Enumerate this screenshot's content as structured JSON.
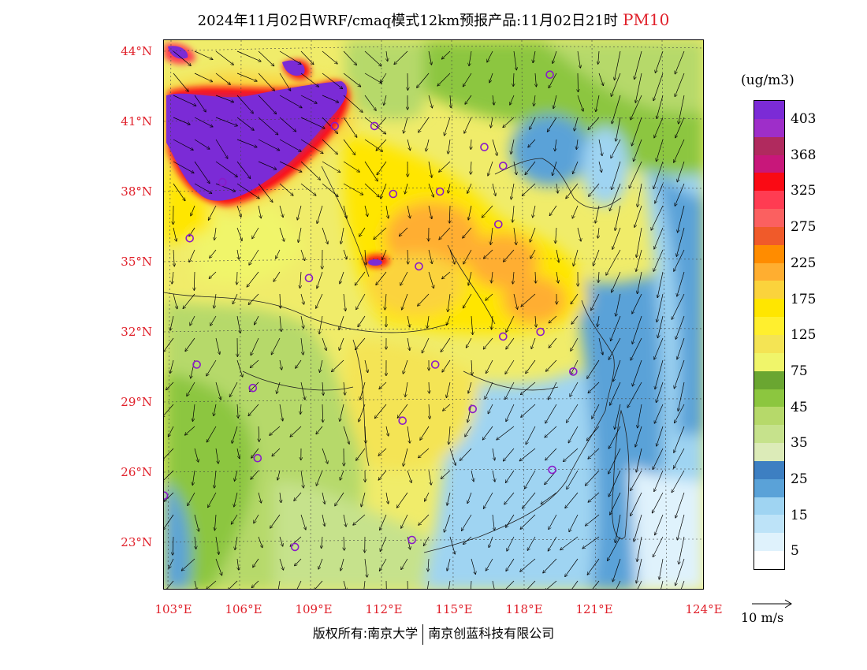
{
  "title": {
    "main": "2024年11月02日WRF/cmaq模式12km预报产品:11月02日21时",
    "pollutant": "PM10"
  },
  "axes": {
    "lat_labels": [
      "44°N",
      "41°N",
      "38°N",
      "35°N",
      "32°N",
      "29°N",
      "26°N",
      "23°N"
    ],
    "lon_labels": [
      "103°E",
      "106°E",
      "109°E",
      "112°E",
      "115°E",
      "118°E",
      "121°E",
      "124°E"
    ]
  },
  "legend": {
    "unit": "(ug/m3)",
    "labels": [
      "403",
      "368",
      "325",
      "275",
      "225",
      "175",
      "125",
      "75",
      "45",
      "35",
      "25",
      "15",
      "5"
    ],
    "colors": [
      "#7b2bd6",
      "#9e2ec9",
      "#b02a5e",
      "#c8177a",
      "#fa0a14",
      "#ff3c52",
      "#fb6060",
      "#f05a2a",
      "#ff8c00",
      "#ffae30",
      "#fbd33c",
      "#ffe600",
      "#ffef2e",
      "#f4e454",
      "#f0f56a",
      "#6aa631",
      "#8cc63f",
      "#b6d96a",
      "#c6e28c",
      "#dcebb8",
      "#3d7fc2",
      "#5aa2d8",
      "#9fd4f2",
      "#bde3f8",
      "#dff2fc",
      "#ffffff"
    ],
    "wind_ref": "10 m/s"
  },
  "footer": {
    "left": "版权所有:南京大学",
    "right": "南京创蓝科技有限公司"
  },
  "markers": [
    {
      "lon": 110.0,
      "lat": 40.8
    },
    {
      "lon": 105.2,
      "lat": 38.4
    },
    {
      "lon": 114.5,
      "lat": 38.0
    },
    {
      "lon": 112.5,
      "lat": 37.9
    },
    {
      "lon": 116.4,
      "lat": 39.9
    },
    {
      "lon": 117.2,
      "lat": 39.1
    },
    {
      "lon": 119.2,
      "lat": 43.0
    },
    {
      "lon": 103.8,
      "lat": 36.0
    },
    {
      "lon": 108.9,
      "lat": 34.3
    },
    {
      "lon": 113.6,
      "lat": 34.8
    },
    {
      "lon": 117.0,
      "lat": 36.6
    },
    {
      "lon": 117.2,
      "lat": 31.8
    },
    {
      "lon": 118.8,
      "lat": 32.0
    },
    {
      "lon": 120.2,
      "lat": 30.3
    },
    {
      "lon": 114.3,
      "lat": 30.6
    },
    {
      "lon": 112.9,
      "lat": 28.2
    },
    {
      "lon": 115.9,
      "lat": 28.7
    },
    {
      "lon": 104.1,
      "lat": 30.6
    },
    {
      "lon": 106.5,
      "lat": 29.6
    },
    {
      "lon": 106.7,
      "lat": 26.6
    },
    {
      "lon": 102.7,
      "lat": 25.0
    },
    {
      "lon": 108.3,
      "lat": 22.8
    },
    {
      "lon": 113.3,
      "lat": 23.1
    },
    {
      "lon": 119.3,
      "lat": 26.1
    },
    {
      "lon": 111.7,
      "lat": 40.8
    }
  ]
}
